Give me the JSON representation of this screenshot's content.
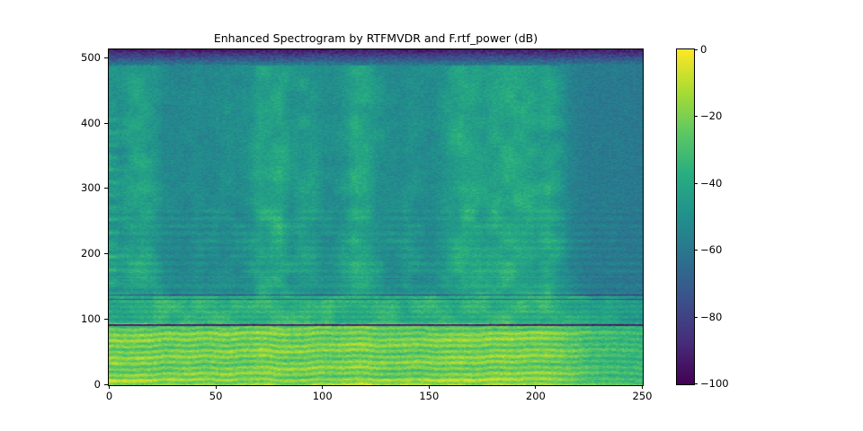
{
  "chart_data": {
    "type": "heatmap",
    "title": "Enhanced Spectrogram by RTFMVDR and F.rtf_power (dB)",
    "xlabel": "",
    "ylabel": "",
    "x_range": [
      0,
      250
    ],
    "y_range": [
      0,
      512
    ],
    "x_ticks": [
      0,
      50,
      100,
      150,
      200,
      250
    ],
    "x_tick_labels": [
      "0",
      "50",
      "100",
      "150",
      "200",
      "250"
    ],
    "y_ticks": [
      0,
      100,
      200,
      300,
      400,
      500
    ],
    "y_tick_labels": [
      "0",
      "100",
      "200",
      "300",
      "400",
      "500"
    ],
    "grid": false,
    "colormap": "viridis",
    "colormap_stops": [
      "#440154",
      "#472c7a",
      "#3b518b",
      "#2c718e",
      "#21908d",
      "#27ad81",
      "#5cc863",
      "#aadc32",
      "#fde725"
    ],
    "colorbar": {
      "range_db": [
        -100,
        0
      ],
      "ticks": [
        0,
        -20,
        -40,
        -60,
        -80,
        -100
      ],
      "tick_labels": [
        "0",
        "−20",
        "−40",
        "−60",
        "−80",
        "−100"
      ],
      "position": "right"
    },
    "features": {
      "bright_low_band_freq_range": [
        0,
        135
      ],
      "low_band_level_db": [
        -25,
        -5
      ],
      "mid_band_base_level_db": -50,
      "dark_top_band_freq_range": [
        490,
        512
      ],
      "dark_top_band_level_db": [
        -90,
        -60
      ],
      "quiet_tail_time_range": [
        215,
        250
      ],
      "quiet_tail_level_db": -60,
      "dark_horizontal_lines": [
        {
          "freq": 92,
          "strength": "strong"
        },
        {
          "freq": 131,
          "strength": "medium"
        },
        {
          "freq": 137,
          "strength": "medium"
        },
        {
          "freq": 162,
          "strength": "faint"
        }
      ],
      "left_edge_harmonic_dashes_time_range": [
        0,
        9
      ]
    },
    "time_envelope_step": 5,
    "time_envelope_high_band": [
      0.55,
      0.5,
      0.75,
      0.8,
      0.65,
      0.35,
      0.3,
      0.32,
      0.38,
      0.32,
      0.36,
      0.42,
      0.36,
      0.5,
      0.85,
      0.8,
      0.85,
      0.55,
      0.65,
      0.6,
      0.4,
      0.42,
      0.6,
      0.9,
      0.85,
      0.6,
      0.42,
      0.38,
      0.48,
      0.42,
      0.38,
      0.5,
      0.75,
      0.95,
      0.88,
      0.7,
      0.85,
      0.85,
      0.9,
      0.85,
      0.7,
      0.85,
      0.6,
      0.3,
      0.15,
      0.1,
      0.1,
      0.1,
      0.1,
      0.08,
      0.08
    ],
    "time_envelope_low_band": [
      0.92,
      0.88,
      0.9,
      0.92,
      0.88,
      0.82,
      0.86,
      0.9,
      0.86,
      0.82,
      0.86,
      0.9,
      0.86,
      0.86,
      0.95,
      0.95,
      0.9,
      0.86,
      0.86,
      0.9,
      0.86,
      0.82,
      0.9,
      0.95,
      0.95,
      0.86,
      0.82,
      0.82,
      0.86,
      0.82,
      0.86,
      0.9,
      0.95,
      0.95,
      0.9,
      0.9,
      0.95,
      0.95,
      0.9,
      0.9,
      0.9,
      0.9,
      0.82,
      0.72,
      0.6,
      0.48,
      0.42,
      0.4,
      0.38,
      0.36,
      0.35
    ]
  }
}
